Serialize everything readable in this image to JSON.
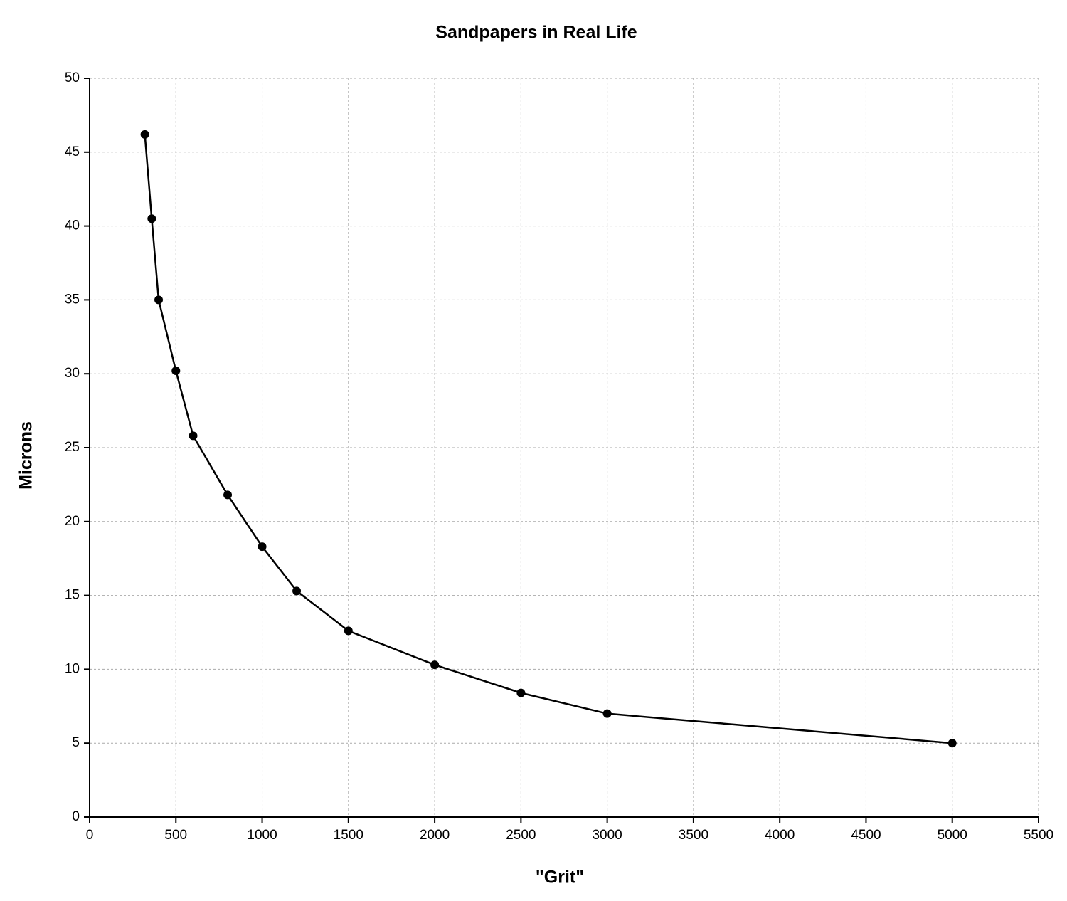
{
  "chart_data": {
    "type": "line",
    "title": "Sandpapers in Real Life",
    "x_label": "\"Grit\"",
    "y_label": "Microns",
    "x": [
      320,
      360,
      400,
      500,
      600,
      800,
      1000,
      1200,
      1500,
      2000,
      2500,
      3000,
      5000
    ],
    "values": [
      46.2,
      40.5,
      35,
      30.2,
      25.8,
      21.8,
      18.3,
      15.3,
      12.6,
      10.3,
      8.4,
      7.0,
      5.0
    ],
    "color": "#000000",
    "markers": true,
    "xlim": [
      0,
      5500
    ],
    "xticks": [
      0,
      500,
      1000,
      1500,
      2000,
      2500,
      3000,
      3500,
      4000,
      4500,
      5000,
      5500
    ],
    "ylim": [
      0,
      50
    ],
    "yticks": [
      0,
      5,
      10,
      15,
      20,
      25,
      30,
      35,
      40,
      45,
      50
    ],
    "grid": true
  }
}
